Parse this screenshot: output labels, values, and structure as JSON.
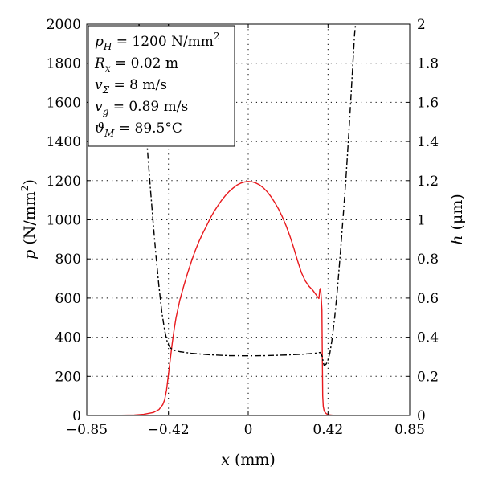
{
  "chart_data": {
    "type": "line",
    "title": "",
    "xlabel": {
      "var": "x",
      "unit": " (mm)"
    },
    "ylabel_left": {
      "var": "p",
      "unit": " (N/mm",
      "sup": "2",
      "close": ")"
    },
    "ylabel_right": {
      "var": "h",
      "unit": " (μm)"
    },
    "xlim": [
      -0.85,
      0.85
    ],
    "ylim_left": [
      0,
      2000
    ],
    "ylim_right": [
      0,
      2
    ],
    "xticks": [
      -0.85,
      -0.42,
      0,
      0.42,
      0.85
    ],
    "xtick_labels": [
      "−0.85",
      "−0.42",
      "0",
      "0.42",
      "0.85"
    ],
    "yticks_left": [
      0,
      200,
      400,
      600,
      800,
      1000,
      1200,
      1400,
      1600,
      1800,
      2000
    ],
    "ytick_labels_left": [
      "0",
      "200",
      "400",
      "600",
      "800",
      "1000",
      "1200",
      "1400",
      "1600",
      "1800",
      "2000"
    ],
    "yticks_right": [
      0,
      0.2,
      0.4,
      0.6,
      0.8,
      1,
      1.2,
      1.4,
      1.6,
      1.8,
      2
    ],
    "ytick_labels_right": [
      "0",
      "0.2",
      "0.4",
      "0.6",
      "0.8",
      "1",
      "1.2",
      "1.4",
      "1.6",
      "1.8",
      "2"
    ],
    "grid": "dotted at x ticks and y ticks",
    "info_box": [
      {
        "sym": "p",
        "sub": "H",
        "val": " = 1200 N/mm",
        "sup": "2"
      },
      {
        "sym": "R",
        "sub": "x",
        "val": " = 0.02 m",
        "sup": ""
      },
      {
        "sym": "v",
        "sub": "Σ",
        "val": " = 8 m/s",
        "sup": ""
      },
      {
        "sym": "v",
        "sub": "g",
        "val": " = 0.89 m/s",
        "sup": ""
      },
      {
        "sym": "ϑ",
        "sub": "M",
        "val": " = 89.5°C",
        "sup": ""
      }
    ],
    "series": [
      {
        "axis": "left",
        "color": "#e8191d",
        "style": "solid",
        "points": [
          [
            -0.85,
            0
          ],
          [
            -0.7,
            0.5
          ],
          [
            -0.6,
            2
          ],
          [
            -0.55,
            6
          ],
          [
            -0.5,
            15
          ],
          [
            -0.47,
            30
          ],
          [
            -0.45,
            55
          ],
          [
            -0.44,
            80
          ],
          [
            -0.43,
            130
          ],
          [
            -0.42,
            210
          ],
          [
            -0.41,
            290
          ],
          [
            -0.4,
            370
          ],
          [
            -0.39,
            440
          ],
          [
            -0.38,
            500
          ],
          [
            -0.36,
            590
          ],
          [
            -0.34,
            660
          ],
          [
            -0.32,
            725
          ],
          [
            -0.3,
            785
          ],
          [
            -0.28,
            840
          ],
          [
            -0.26,
            888
          ],
          [
            -0.24,
            930
          ],
          [
            -0.22,
            968
          ],
          [
            -0.2,
            1008
          ],
          [
            -0.18,
            1042
          ],
          [
            -0.16,
            1072
          ],
          [
            -0.14,
            1100
          ],
          [
            -0.12,
            1124
          ],
          [
            -0.1,
            1145
          ],
          [
            -0.08,
            1162
          ],
          [
            -0.06,
            1177
          ],
          [
            -0.04,
            1187
          ],
          [
            -0.02,
            1193
          ],
          [
            0,
            1196
          ],
          [
            0.02,
            1194
          ],
          [
            0.04,
            1188
          ],
          [
            0.06,
            1178
          ],
          [
            0.08,
            1163
          ],
          [
            0.1,
            1143
          ],
          [
            0.12,
            1118
          ],
          [
            0.14,
            1088
          ],
          [
            0.16,
            1054
          ],
          [
            0.18,
            1014
          ],
          [
            0.2,
            968
          ],
          [
            0.22,
            915
          ],
          [
            0.24,
            855
          ],
          [
            0.26,
            790
          ],
          [
            0.28,
            730
          ],
          [
            0.3,
            688
          ],
          [
            0.32,
            660
          ],
          [
            0.34,
            640
          ],
          [
            0.355,
            620
          ],
          [
            0.365,
            606
          ],
          [
            0.372,
            598
          ],
          [
            0.377,
            645
          ],
          [
            0.381,
            650
          ],
          [
            0.385,
            590
          ],
          [
            0.388,
            540
          ],
          [
            0.39,
            300
          ],
          [
            0.392,
            100
          ],
          [
            0.395,
            45
          ],
          [
            0.4,
            22
          ],
          [
            0.41,
            10
          ],
          [
            0.42,
            4
          ],
          [
            0.45,
            1
          ],
          [
            0.5,
            0
          ],
          [
            0.85,
            0
          ]
        ]
      },
      {
        "axis": "right",
        "color": "#000000",
        "style": "dashdot",
        "points": [
          [
            -0.575,
            2.0
          ],
          [
            -0.56,
            1.77
          ],
          [
            -0.545,
            1.55
          ],
          [
            -0.53,
            1.35
          ],
          [
            -0.515,
            1.16
          ],
          [
            -0.5,
            0.98
          ],
          [
            -0.485,
            0.81
          ],
          [
            -0.47,
            0.66
          ],
          [
            -0.455,
            0.53
          ],
          [
            -0.44,
            0.435
          ],
          [
            -0.425,
            0.37
          ],
          [
            -0.41,
            0.345
          ],
          [
            -0.39,
            0.333
          ],
          [
            -0.36,
            0.326
          ],
          [
            -0.3,
            0.318
          ],
          [
            -0.2,
            0.31
          ],
          [
            -0.1,
            0.306
          ],
          [
            0,
            0.305
          ],
          [
            0.1,
            0.306
          ],
          [
            0.2,
            0.309
          ],
          [
            0.3,
            0.314
          ],
          [
            0.35,
            0.318
          ],
          [
            0.38,
            0.322
          ],
          [
            0.39,
            0.3
          ],
          [
            0.395,
            0.27
          ],
          [
            0.4,
            0.255
          ],
          [
            0.41,
            0.262
          ],
          [
            0.42,
            0.285
          ],
          [
            0.43,
            0.32
          ],
          [
            0.44,
            0.38
          ],
          [
            0.455,
            0.5
          ],
          [
            0.47,
            0.65
          ],
          [
            0.485,
            0.83
          ],
          [
            0.5,
            1.02
          ],
          [
            0.515,
            1.22
          ],
          [
            0.53,
            1.45
          ],
          [
            0.545,
            1.7
          ],
          [
            0.56,
            1.95
          ],
          [
            0.565,
            2.0
          ]
        ]
      }
    ]
  }
}
